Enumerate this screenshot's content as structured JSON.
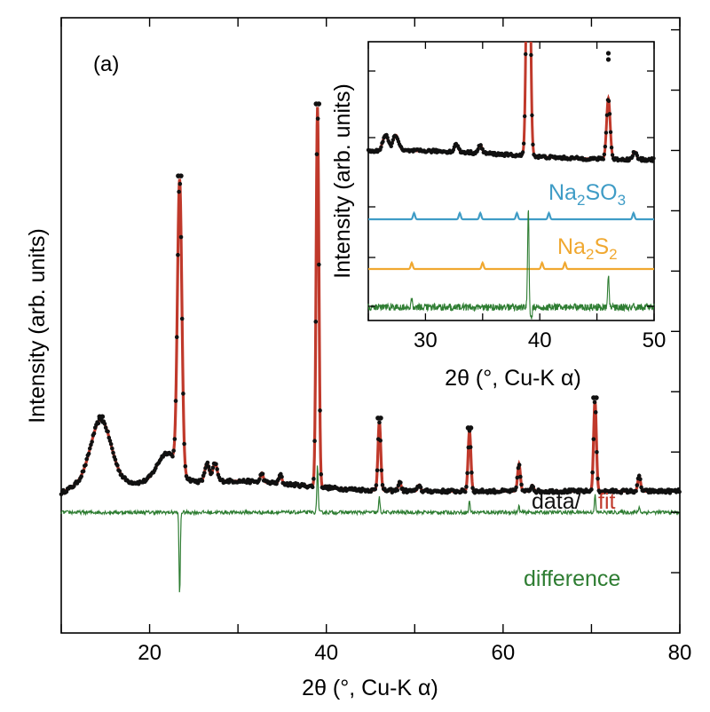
{
  "chart_data": [
    {
      "type": "line",
      "panel_label": "(a)",
      "xlabel": "2θ (°, Cu-K α)",
      "ylabel": "Intensity (arb. units)",
      "xlim": [
        10,
        80
      ],
      "ylim": [
        -1.0,
        9.2
      ],
      "x_ticks": [
        20,
        40,
        60,
        80
      ],
      "y_ticks_labeled": false,
      "grid": false,
      "annotations": {
        "data_label": "data/",
        "fit_label": "fit",
        "difference_label": "difference"
      },
      "series": [
        {
          "name": "data",
          "style": "dots",
          "color": "#111111",
          "peaks": [
            [
              14.5,
              1.0
            ],
            [
              22.0,
              0.5
            ],
            [
              23.4,
              4.8
            ],
            [
              26.5,
              0.3
            ],
            [
              27.4,
              0.3
            ],
            [
              32.7,
              0.15
            ],
            [
              34.8,
              0.15
            ],
            [
              39.0,
              6.3
            ],
            [
              46.0,
              1.15
            ],
            [
              48.3,
              0.15
            ],
            [
              50.5,
              0.1
            ],
            [
              56.2,
              1.0
            ],
            [
              61.8,
              0.45
            ],
            [
              63.3,
              0.1
            ],
            [
              70.4,
              1.5
            ],
            [
              75.4,
              0.25
            ]
          ]
        },
        {
          "name": "fit",
          "style": "line",
          "color": "#c0392b"
        },
        {
          "name": "difference",
          "style": "line",
          "color": "#2e7d32",
          "offset": 1.0,
          "features": [
            [
              23.4,
              -1.4
            ],
            [
              39.0,
              0.8
            ],
            [
              46.0,
              0.25
            ],
            [
              56.2,
              0.2
            ],
            [
              61.8,
              0.1
            ],
            [
              70.4,
              0.3
            ],
            [
              75.4,
              0.1
            ]
          ]
        }
      ]
    },
    {
      "type": "line",
      "role": "inset",
      "xlabel": "2θ (°, Cu-K α)",
      "ylabel": "Intensity (arb. units)",
      "xlim": [
        25,
        50
      ],
      "x_ticks": [
        30,
        40,
        50
      ],
      "y_ticks_labeled": false,
      "series": [
        {
          "name": "data/fit",
          "color": "#c0392b"
        },
        {
          "name": "Na2SO3",
          "label_main": "Na",
          "label_sub1": "2",
          "label_mid": "SO",
          "label_sub2": "3",
          "color": "#3f9cc6",
          "peaks": [
            29.0,
            33.0,
            34.8,
            38.0,
            40.8,
            48.2
          ]
        },
        {
          "name": "Na2S2",
          "label_main": "Na",
          "label_sub1": "2",
          "label_mid": "S",
          "label_sub2": "2",
          "color": "#f0a830",
          "peaks": [
            28.8,
            35.0,
            40.2,
            42.2
          ]
        },
        {
          "name": "difference",
          "color": "#2e7d32"
        }
      ]
    }
  ],
  "colors": {
    "data": "#111111",
    "fit": "#c0392b",
    "difference": "#2e7d32",
    "na2so3": "#3f9cc6",
    "na2s2": "#f0a830"
  }
}
